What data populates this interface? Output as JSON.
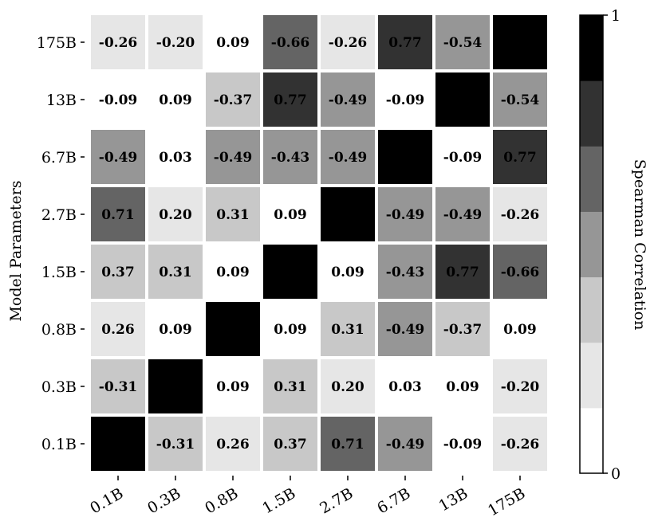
{
  "chart_data": {
    "type": "heatmap",
    "title": "",
    "xlabel": "",
    "ylabel": "Model Parameters",
    "x_categories": [
      "0.1B",
      "0.3B",
      "0.8B",
      "1.5B",
      "2.7B",
      "6.7B",
      "13B",
      "175B"
    ],
    "y_categories": [
      "175B",
      "13B",
      "6.7B",
      "2.7B",
      "1.5B",
      "0.8B",
      "0.3B",
      "0.1B"
    ],
    "values": [
      [
        -0.26,
        -0.2,
        0.09,
        -0.66,
        -0.26,
        0.77,
        -0.54,
        1.0
      ],
      [
        -0.09,
        0.09,
        -0.37,
        0.77,
        -0.49,
        -0.09,
        1.0,
        -0.54
      ],
      [
        -0.49,
        0.03,
        -0.49,
        -0.43,
        -0.49,
        1.0,
        -0.09,
        0.77
      ],
      [
        0.71,
        0.2,
        0.31,
        0.09,
        1.0,
        -0.49,
        -0.49,
        -0.26
      ],
      [
        0.37,
        0.31,
        0.09,
        1.0,
        0.09,
        -0.43,
        0.77,
        -0.66
      ],
      [
        0.26,
        0.09,
        1.0,
        0.09,
        0.31,
        -0.49,
        -0.37,
        0.09
      ],
      [
        -0.31,
        1.0,
        0.09,
        0.31,
        0.2,
        0.03,
        0.09,
        -0.2
      ],
      [
        1.0,
        -0.31,
        0.26,
        0.37,
        0.71,
        -0.49,
        -0.09,
        -0.26
      ]
    ],
    "diagonal_label_shown": false,
    "colorbar": {
      "label": "Spearman Correlation",
      "range": [
        0,
        1
      ],
      "tick_labels": [
        "0",
        "1"
      ],
      "levels": 7,
      "colors": [
        "#ffffff",
        "#e6e6e6",
        "#c8c8c8",
        "#969696",
        "#646464",
        "#323232",
        "#000000"
      ]
    }
  }
}
